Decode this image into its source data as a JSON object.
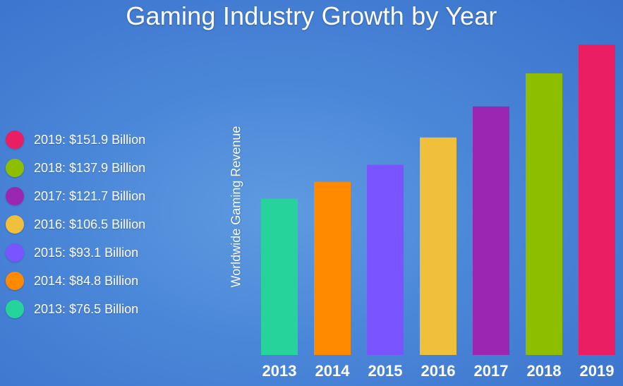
{
  "chart_data": {
    "type": "bar",
    "title": "Gaming Industry Growth by Year",
    "xlabel": "",
    "ylabel": "Worldwide Gaming Revenue",
    "categories": [
      "2013",
      "2014",
      "2015",
      "2016",
      "2017",
      "2018",
      "2019"
    ],
    "values": [
      76.5,
      84.8,
      93.1,
      106.5,
      121.7,
      137.9,
      151.9
    ],
    "unit": "Billion",
    "colors": [
      "#26d39a",
      "#ff8a00",
      "#7a55ff",
      "#f0bf3c",
      "#9b27b0",
      "#8dbf00",
      "#e91e63"
    ],
    "ylim": [
      0,
      160
    ],
    "grid": false,
    "legend": {
      "position": "left",
      "entries": [
        {
          "label": "2019: $151.9 Billion",
          "color": "#e91e63"
        },
        {
          "label": "2018: $137.9 Billion",
          "color": "#8dbf00"
        },
        {
          "label": "2017: $121.7 Billion",
          "color": "#9b27b0"
        },
        {
          "label": "2016: $106.5 Billion",
          "color": "#f0bf3c"
        },
        {
          "label": "2015: $93.1 Billion",
          "color": "#7a55ff"
        },
        {
          "label": "2014: $84.8 Billion",
          "color": "#ff8a00"
        },
        {
          "label": "2013: $76.5 Billion",
          "color": "#26d39a"
        }
      ]
    }
  }
}
